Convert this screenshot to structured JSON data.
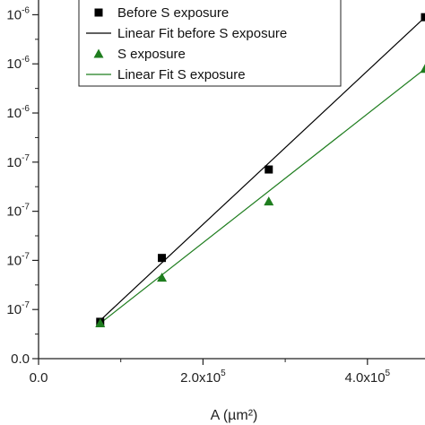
{
  "chart_data": {
    "type": "scatter",
    "xlabel": "A (µm²)",
    "ylabel": "",
    "xlim": [
      0,
      470000
    ],
    "ylim": [
      0,
      7.3e-07
    ],
    "x_ticks": [
      {
        "value": 0,
        "label": "0.0",
        "exp": ""
      },
      {
        "value": 200000,
        "label": "2.0x10",
        "exp": "5"
      },
      {
        "value": 400000,
        "label": "4.0x10",
        "exp": "5"
      }
    ],
    "y_ticks": [
      {
        "value": 0,
        "label": "0.0",
        "exp": ""
      },
      {
        "value": 1e-07,
        "label": "10",
        "exp": "-7"
      },
      {
        "value": 2e-07,
        "label": "10",
        "exp": "-7"
      },
      {
        "value": 3e-07,
        "label": "10",
        "exp": "-7"
      },
      {
        "value": 4e-07,
        "label": "10",
        "exp": "-7"
      },
      {
        "value": 5e-07,
        "label": "10",
        "exp": "-6"
      },
      {
        "value": 6e-07,
        "label": "10",
        "exp": "-6"
      },
      {
        "value": 7e-07,
        "label": "10",
        "exp": "-6"
      }
    ],
    "series": [
      {
        "name": "Before S exposure",
        "marker": "square",
        "color": "#000000",
        "x": [
          75000,
          150000,
          280000,
          470000
        ],
        "y": [
          7.5e-08,
          2.05e-07,
          3.85e-07,
          6.95e-07
        ]
      },
      {
        "name": "S exposure",
        "marker": "triangle",
        "color": "#1e7d1e",
        "x": [
          75000,
          150000,
          280000,
          470000
        ],
        "y": [
          7.2e-08,
          1.65e-07,
          3.2e-07,
          5.9e-07
        ]
      }
    ],
    "fits": [
      {
        "name": "Linear Fit before S exposure",
        "color": "#000000",
        "x": [
          75000,
          470000
        ],
        "y": [
          7.8e-08,
          6.95e-07
        ]
      },
      {
        "name": "Linear Fit S exposure",
        "color": "#1e7d1e",
        "x": [
          75000,
          470000
        ],
        "y": [
          7.2e-08,
          5.9e-07
        ]
      }
    ],
    "legend": {
      "position": "top",
      "entries": [
        {
          "label": "Before S exposure",
          "kind": "square",
          "color": "#000000"
        },
        {
          "label": "Linear Fit before S exposure",
          "kind": "line",
          "color": "#000000"
        },
        {
          "label": "S exposure",
          "kind": "triangle",
          "color": "#1e7d1e"
        },
        {
          "label": "Linear Fit S exposure",
          "kind": "line",
          "color": "#1e7d1e"
        }
      ]
    }
  }
}
